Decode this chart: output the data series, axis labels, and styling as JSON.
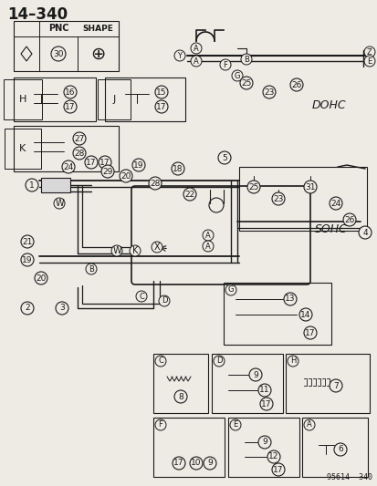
{
  "title": "14–340",
  "bg_color": "#eeebe5",
  "line_color": "#1a1a1a",
  "text_color": "#1a1a1a",
  "dohc_label": "DOHC",
  "sohc_label": "SOHC",
  "part_number": "95614  340",
  "figsize": [
    4.14,
    5.33
  ],
  "dpi": 100
}
